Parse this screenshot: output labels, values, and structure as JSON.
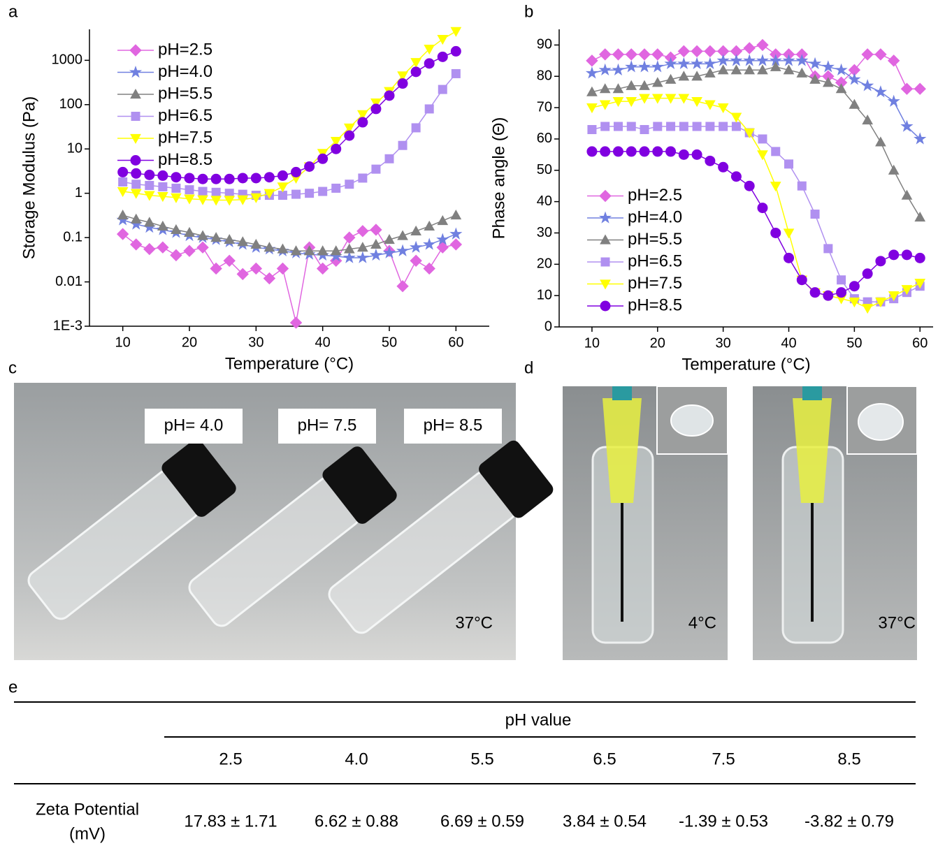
{
  "panel_labels": [
    "a",
    "b",
    "c",
    "d",
    "e"
  ],
  "chart_data": [
    {
      "type": "line",
      "x_label": "Temperature (°C)",
      "y_label": "Storage Modulus (Pa)",
      "log_y": true,
      "legend": "upper left",
      "xlim": [
        5,
        65
      ],
      "xticks": [
        10,
        20,
        30,
        40,
        50,
        60
      ],
      "ylim": [
        0.001,
        5000
      ],
      "yticks": [
        {
          "value": 0.001,
          "label": "1E-3"
        },
        0.01,
        0.1,
        1,
        10,
        100,
        1000
      ],
      "x": [
        10,
        12,
        14,
        16,
        18,
        20,
        22,
        24,
        26,
        28,
        30,
        32,
        34,
        36,
        38,
        40,
        42,
        44,
        46,
        48,
        50,
        52,
        54,
        56,
        58,
        60
      ],
      "series": [
        {
          "name": "pH=2.5",
          "color": "#e066e0",
          "marker": "diamond",
          "values": [
            0.12,
            0.07,
            0.055,
            0.06,
            0.04,
            0.05,
            0.06,
            0.02,
            0.03,
            0.015,
            0.02,
            0.012,
            0.02,
            0.0012,
            0.06,
            0.02,
            0.03,
            0.1,
            0.14,
            0.15,
            0.05,
            0.008,
            0.03,
            0.02,
            0.06,
            0.07
          ]
        },
        {
          "name": "pH=4.0",
          "color": "#7080e0",
          "marker": "star",
          "values": [
            0.25,
            0.2,
            0.17,
            0.15,
            0.13,
            0.11,
            0.1,
            0.09,
            0.08,
            0.07,
            0.06,
            0.055,
            0.05,
            0.045,
            0.042,
            0.04,
            0.038,
            0.035,
            0.035,
            0.04,
            0.045,
            0.05,
            0.06,
            0.07,
            0.09,
            0.12
          ]
        },
        {
          "name": "pH=5.5",
          "color": "#808080",
          "marker": "triangle-up",
          "values": [
            0.32,
            0.26,
            0.22,
            0.18,
            0.15,
            0.13,
            0.11,
            0.1,
            0.09,
            0.08,
            0.07,
            0.06,
            0.055,
            0.05,
            0.05,
            0.05,
            0.05,
            0.055,
            0.06,
            0.07,
            0.09,
            0.11,
            0.14,
            0.18,
            0.24,
            0.32
          ]
        },
        {
          "name": "pH=6.5",
          "color": "#b090f0",
          "marker": "square",
          "values": [
            1.8,
            1.6,
            1.5,
            1.4,
            1.3,
            1.2,
            1.1,
            1.05,
            1.0,
            0.95,
            0.9,
            0.9,
            0.9,
            0.95,
            1.0,
            1.1,
            1.3,
            1.6,
            2.2,
            3.5,
            6,
            12,
            30,
            80,
            220,
            500
          ]
        },
        {
          "name": "pH=7.5",
          "color": "#ffff00",
          "marker": "triangle-down",
          "values": [
            1.1,
            1.0,
            0.9,
            0.85,
            0.8,
            0.75,
            0.72,
            0.7,
            0.7,
            0.72,
            0.8,
            1.0,
            1.4,
            2.2,
            4,
            8,
            15,
            30,
            60,
            110,
            200,
            450,
            900,
            1800,
            3000,
            4500
          ]
        },
        {
          "name": "pH=8.5",
          "color": "#8000e0",
          "marker": "circle",
          "values": [
            3.0,
            2.8,
            2.6,
            2.5,
            2.3,
            2.2,
            2.1,
            2.1,
            2.1,
            2.2,
            2.2,
            2.3,
            2.5,
            3.0,
            4.0,
            6.0,
            10,
            20,
            40,
            80,
            160,
            300,
            550,
            850,
            1200,
            1600
          ]
        }
      ]
    },
    {
      "type": "line",
      "x_label": "Temperature (°C)",
      "y_label": "Phase angle (Θ)",
      "log_y": false,
      "legend": "lower left",
      "xlim": [
        5,
        62
      ],
      "xticks": [
        10,
        20,
        30,
        40,
        50,
        60
      ],
      "ylim": [
        0,
        95
      ],
      "yticks": [
        0,
        10,
        20,
        30,
        40,
        50,
        60,
        70,
        80,
        90
      ],
      "x": [
        10,
        12,
        14,
        16,
        18,
        20,
        22,
        24,
        26,
        28,
        30,
        32,
        34,
        36,
        38,
        40,
        42,
        44,
        46,
        48,
        50,
        52,
        54,
        56,
        58,
        60
      ],
      "series": [
        {
          "name": "pH=2.5",
          "color": "#e066e0",
          "marker": "diamond",
          "values": [
            85,
            87,
            87,
            87,
            87,
            87,
            86,
            88,
            88,
            88,
            88,
            88,
            89,
            90,
            87,
            87,
            87,
            80,
            80,
            78,
            82,
            87,
            87,
            85,
            76,
            76
          ]
        },
        {
          "name": "pH=4.0",
          "color": "#7080e0",
          "marker": "star",
          "values": [
            81,
            82,
            82,
            83,
            83,
            83,
            84,
            84,
            84,
            84,
            85,
            85,
            85,
            85,
            85,
            85,
            85,
            84,
            83,
            82,
            79,
            77,
            75,
            72,
            64,
            60
          ]
        },
        {
          "name": "pH=5.5",
          "color": "#808080",
          "marker": "triangle-up",
          "values": [
            75,
            76,
            76,
            77,
            77,
            78,
            79,
            80,
            80,
            81,
            82,
            82,
            82,
            82,
            83,
            82,
            81,
            79,
            78,
            76,
            71,
            66,
            59,
            50,
            42,
            35
          ]
        },
        {
          "name": "pH=6.5",
          "color": "#b090f0",
          "marker": "square",
          "values": [
            63,
            64,
            64,
            64,
            63,
            64,
            64,
            64,
            64,
            64,
            64,
            64,
            62,
            60,
            56,
            52,
            45,
            36,
            25,
            15,
            9,
            8,
            8,
            9,
            11,
            13
          ]
        },
        {
          "name": "pH=7.5",
          "color": "#ffff00",
          "marker": "triangle-down",
          "values": [
            70,
            71,
            72,
            72,
            73,
            73,
            73,
            73,
            72,
            71,
            70,
            67,
            62,
            55,
            45,
            30,
            15,
            11,
            10,
            9,
            8,
            6,
            8,
            10,
            12,
            14
          ]
        },
        {
          "name": "pH=8.5",
          "color": "#8000e0",
          "marker": "circle",
          "values": [
            56,
            56,
            56,
            56,
            56,
            56,
            56,
            55,
            55,
            53,
            51,
            48,
            45,
            38,
            30,
            22,
            15,
            11,
            10,
            11,
            13,
            17,
            21,
            23,
            23,
            22
          ]
        }
      ]
    }
  ],
  "photos": {
    "c_labels": [
      "pH= 4.0",
      "pH= 7.5",
      "pH= 8.5"
    ],
    "c_temp": "37°C",
    "d_temps": [
      "4°C",
      "37°C"
    ]
  },
  "table": {
    "header": "pH value",
    "columns": [
      "2.5",
      "4.0",
      "5.5",
      "6.5",
      "7.5",
      "8.5"
    ],
    "row_label": [
      "Zeta Potential",
      "(mV)"
    ],
    "cells": [
      "17.83 ± 1.71",
      "6.62 ± 0.88",
      "6.69 ± 0.59",
      "3.84 ± 0.54",
      "-1.39 ± 0.53",
      "-3.82 ± 0.79"
    ]
  }
}
